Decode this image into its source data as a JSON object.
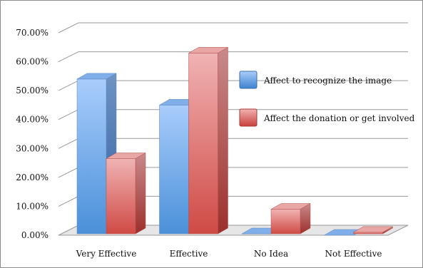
{
  "chart_data": {
    "type": "bar",
    "title": "",
    "xlabel": "",
    "ylabel": "",
    "ylim": [
      0,
      70
    ],
    "y_ticks": [
      "0.00%",
      "10.00%",
      "20.00%",
      "30.00%",
      "40.00%",
      "50.00%",
      "60.00%",
      "70.00%"
    ],
    "categories": [
      "Very Effective",
      "Effective",
      "No Idea",
      "Not Effective"
    ],
    "series": [
      {
        "name": "Affect to recognize the image",
        "values": [
          54,
          45,
          0.5,
          0
        ],
        "color": "#5b9bd5"
      },
      {
        "name": "Affect the donation or get involved",
        "values": [
          26.5,
          63,
          9,
          1
        ],
        "color": "#d9534f"
      }
    ],
    "grid": true,
    "legend_position": "right",
    "style": "3d-clustered-bar"
  }
}
